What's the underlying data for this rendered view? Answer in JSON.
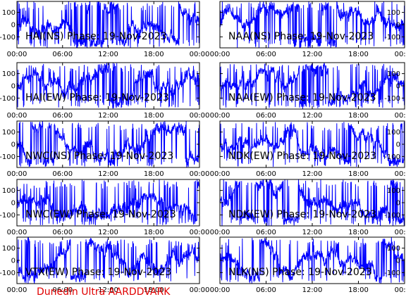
{
  "footer": {
    "text": "Dunedin Ultra AARDDVARK",
    "color": "#e00000"
  },
  "chart_data": [
    {
      "type": "line",
      "title": "HAI(NS) Phase: 19-Nov-2023",
      "x_ticks": [
        "00:00",
        "06:00",
        "12:00",
        "18:00",
        "00:00"
      ],
      "y_ticks": [
        100,
        0,
        -100
      ],
      "ylim": [
        -190,
        190
      ],
      "xlim": [
        0,
        24
      ],
      "series": [
        {
          "color": "#0000ff",
          "amplitude": 190,
          "seed": 11
        }
      ]
    },
    {
      "type": "line",
      "title": "NAA(NS) Phase: 19-Nov-2023",
      "x_ticks": [
        "00:00",
        "06:00",
        "12:00",
        "18:00",
        "00:00"
      ],
      "y_ticks": [
        100,
        0,
        -100
      ],
      "ylim": [
        -190,
        190
      ],
      "xlim": [
        0,
        24
      ],
      "series": [
        {
          "color": "#0000ff",
          "amplitude": 190,
          "seed": 23
        }
      ]
    },
    {
      "type": "line",
      "title": "HAI(EW) Phase: 19-Nov-2023",
      "x_ticks": [
        "00:00",
        "06:00",
        "12:00",
        "18:00",
        "00:00"
      ],
      "y_ticks": [
        100,
        0,
        -100
      ],
      "ylim": [
        -190,
        190
      ],
      "xlim": [
        0,
        24
      ],
      "series": [
        {
          "color": "#0000ff",
          "amplitude": 180,
          "seed": 37
        }
      ]
    },
    {
      "type": "line",
      "title": "NAA(EW) Phase: 19-Nov-2023",
      "x_ticks": [
        "00:00",
        "06:00",
        "12:00",
        "18:00",
        "00:00"
      ],
      "y_ticks": [
        100,
        0,
        -100
      ],
      "ylim": [
        -190,
        190
      ],
      "xlim": [
        0,
        24
      ],
      "series": [
        {
          "color": "#0000ff",
          "amplitude": 180,
          "seed": 41
        }
      ]
    },
    {
      "type": "line",
      "title": "NWC(NS) Phase: 19-Nov-2023",
      "x_ticks": [
        "00:00",
        "06:00",
        "12:00",
        "18:00",
        "00:00"
      ],
      "y_ticks": [
        100,
        0,
        -100
      ],
      "ylim": [
        -190,
        190
      ],
      "xlim": [
        0,
        24
      ],
      "series": [
        {
          "color": "#0000ff",
          "amplitude": 185,
          "seed": 53
        }
      ]
    },
    {
      "type": "line",
      "title": "NDK(EW) Phase: 19-Nov-2023",
      "x_ticks": [
        "00:00",
        "06:00",
        "12:00",
        "18:00",
        "00:00"
      ],
      "y_ticks": [
        100,
        0,
        -100
      ],
      "ylim": [
        -190,
        190
      ],
      "xlim": [
        0,
        24
      ],
      "series": [
        {
          "color": "#0000ff",
          "amplitude": 185,
          "seed": 67
        }
      ]
    },
    {
      "type": "line",
      "title": "NWC(EW) Phase: 19-Nov-2023",
      "x_ticks": [
        "00:00",
        "06:00",
        "12:00",
        "18:00",
        "00:00"
      ],
      "y_ticks": [
        100,
        0,
        -100
      ],
      "ylim": [
        -190,
        190
      ],
      "xlim": [
        0,
        24
      ],
      "series": [
        {
          "color": "#0000ff",
          "amplitude": 190,
          "seed": 71
        }
      ]
    },
    {
      "type": "line",
      "title": "NDK(EW) Phase: 19-Nov-2023",
      "x_ticks": [
        "00:00",
        "06:00",
        "12:00",
        "18:00",
        "00:00"
      ],
      "y_ticks": [
        100,
        0,
        -100
      ],
      "ylim": [
        -190,
        190
      ],
      "xlim": [
        0,
        24
      ],
      "series": [
        {
          "color": "#0000ff",
          "amplitude": 190,
          "seed": 83
        }
      ]
    },
    {
      "type": "line",
      "title": "VTX(EW) Phase: 19-Nov-2023",
      "x_ticks": [
        "00:00",
        "06:00",
        "12:00",
        "18:00",
        "00:00"
      ],
      "y_ticks": [
        100,
        0,
        -100
      ],
      "ylim": [
        -190,
        190
      ],
      "xlim": [
        0,
        24
      ],
      "series": [
        {
          "color": "#0000ff",
          "amplitude": 175,
          "seed": 97
        }
      ]
    },
    {
      "type": "line",
      "title": "NLK(NS) Phase: 19-Nov-2023",
      "x_ticks": [
        "00:00",
        "06:00",
        "12:00",
        "18:00",
        "00:00"
      ],
      "y_ticks": [
        100,
        0,
        -100
      ],
      "ylim": [
        -190,
        190
      ],
      "xlim": [
        0,
        24
      ],
      "series": [
        {
          "color": "#0000ff",
          "amplitude": 180,
          "seed": 101
        }
      ]
    }
  ]
}
